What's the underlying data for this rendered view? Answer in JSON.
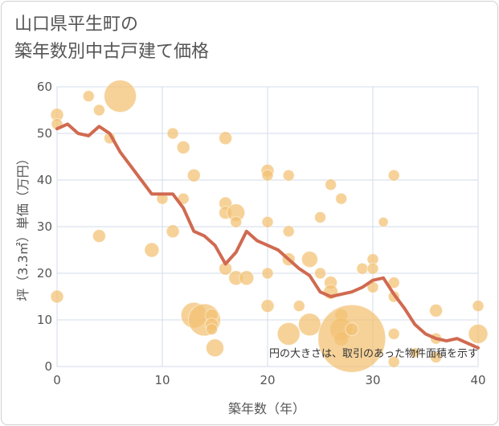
{
  "header": {
    "title_line1": "山口県平生町の",
    "title_line2": "築年数別中古戸建て価格"
  },
  "colors": {
    "bubble": "#f2c071",
    "line": "#d06a50",
    "grid": "#d3dbe8",
    "axis_text": "#555555"
  },
  "chart_data": {
    "type": "scatter",
    "xlabel": "築年数（年）",
    "ylabel": "坪（3.3㎡）単価（万円）",
    "xlim": [
      0,
      40
    ],
    "ylim": [
      0,
      60
    ],
    "x_ticks": [
      0,
      10,
      20,
      30,
      40
    ],
    "y_ticks": [
      0,
      10,
      20,
      30,
      40,
      50,
      60
    ],
    "note": "円の大きさは、取引のあった物件面積を示す",
    "bubbles": [
      {
        "x": 0,
        "y": 54,
        "s": 8
      },
      {
        "x": 0,
        "y": 52,
        "s": 7
      },
      {
        "x": 0,
        "y": 15,
        "s": 8
      },
      {
        "x": 3,
        "y": 58,
        "s": 7
      },
      {
        "x": 4,
        "y": 55,
        "s": 7
      },
      {
        "x": 4,
        "y": 28,
        "s": 8
      },
      {
        "x": 5,
        "y": 49,
        "s": 7
      },
      {
        "x": 6,
        "y": 58,
        "s": 20
      },
      {
        "x": 9,
        "y": 25,
        "s": 9
      },
      {
        "x": 10,
        "y": 36,
        "s": 7
      },
      {
        "x": 11,
        "y": 50,
        "s": 7
      },
      {
        "x": 11,
        "y": 29,
        "s": 8
      },
      {
        "x": 12,
        "y": 47,
        "s": 8
      },
      {
        "x": 12,
        "y": 36,
        "s": 7
      },
      {
        "x": 13,
        "y": 41,
        "s": 8
      },
      {
        "x": 13,
        "y": 11,
        "s": 16
      },
      {
        "x": 14,
        "y": 10,
        "s": 20
      },
      {
        "x": 14.7,
        "y": 11,
        "s": 8
      },
      {
        "x": 14.7,
        "y": 9,
        "s": 8
      },
      {
        "x": 14.7,
        "y": 8,
        "s": 7
      },
      {
        "x": 15,
        "y": 4,
        "s": 11
      },
      {
        "x": 16,
        "y": 49,
        "s": 8
      },
      {
        "x": 16,
        "y": 35,
        "s": 8
      },
      {
        "x": 16,
        "y": 33,
        "s": 8
      },
      {
        "x": 16,
        "y": 21,
        "s": 8
      },
      {
        "x": 17,
        "y": 33,
        "s": 11
      },
      {
        "x": 17,
        "y": 31,
        "s": 7
      },
      {
        "x": 17,
        "y": 19,
        "s": 9
      },
      {
        "x": 18,
        "y": 19,
        "s": 9
      },
      {
        "x": 20,
        "y": 42,
        "s": 8
      },
      {
        "x": 20,
        "y": 41,
        "s": 7
      },
      {
        "x": 20,
        "y": 31,
        "s": 7
      },
      {
        "x": 20,
        "y": 20,
        "s": 7
      },
      {
        "x": 20,
        "y": 13,
        "s": 8
      },
      {
        "x": 22,
        "y": 41,
        "s": 7
      },
      {
        "x": 22,
        "y": 29,
        "s": 7
      },
      {
        "x": 22,
        "y": 23,
        "s": 8
      },
      {
        "x": 22,
        "y": 7,
        "s": 14
      },
      {
        "x": 23,
        "y": 13,
        "s": 7
      },
      {
        "x": 24,
        "y": 23,
        "s": 10
      },
      {
        "x": 24,
        "y": 9,
        "s": 14
      },
      {
        "x": 25,
        "y": 32,
        "s": 7
      },
      {
        "x": 25,
        "y": 20,
        "s": 7
      },
      {
        "x": 26,
        "y": 39,
        "s": 7
      },
      {
        "x": 26,
        "y": 18,
        "s": 8
      },
      {
        "x": 26,
        "y": 16,
        "s": 9
      },
      {
        "x": 27,
        "y": 36,
        "s": 7
      },
      {
        "x": 27,
        "y": 11,
        "s": 8
      },
      {
        "x": 27,
        "y": 8,
        "s": 14
      },
      {
        "x": 27,
        "y": 6,
        "s": 9
      },
      {
        "x": 28,
        "y": 6,
        "s": 42
      },
      {
        "x": 28,
        "y": 8,
        "s": 8
      },
      {
        "x": 29,
        "y": 21,
        "s": 7
      },
      {
        "x": 30,
        "y": 23,
        "s": 7
      },
      {
        "x": 30,
        "y": 21,
        "s": 7
      },
      {
        "x": 30,
        "y": 17,
        "s": 7
      },
      {
        "x": 31,
        "y": 31,
        "s": 6
      },
      {
        "x": 32,
        "y": 41,
        "s": 7
      },
      {
        "x": 32,
        "y": 18,
        "s": 7
      },
      {
        "x": 32,
        "y": 15,
        "s": 7
      },
      {
        "x": 32,
        "y": 7,
        "s": 7
      },
      {
        "x": 32,
        "y": 1,
        "s": 7
      },
      {
        "x": 34,
        "y": 3,
        "s": 6
      },
      {
        "x": 36,
        "y": 12,
        "s": 8
      },
      {
        "x": 36,
        "y": 6,
        "s": 7
      },
      {
        "x": 36,
        "y": 2,
        "s": 7
      },
      {
        "x": 40,
        "y": 13,
        "s": 7
      },
      {
        "x": 40,
        "y": 7,
        "s": 12
      }
    ],
    "trend": {
      "x": [
        0,
        1,
        2,
        3,
        4,
        5,
        6,
        7,
        8,
        9,
        10,
        11,
        12,
        13,
        14,
        15,
        16,
        17,
        18,
        19,
        20,
        21,
        22,
        23,
        24,
        25,
        26,
        27,
        28,
        29,
        30,
        31,
        32,
        33,
        34,
        35,
        36,
        37,
        38,
        39,
        40
      ],
      "y": [
        51,
        52,
        50,
        49.5,
        51.5,
        50,
        46,
        43,
        40,
        37,
        37,
        37,
        34,
        29,
        28,
        26,
        22,
        24.5,
        29,
        27,
        26,
        25,
        23,
        21,
        19.5,
        16,
        15,
        15.5,
        16,
        17,
        18.5,
        19,
        15.5,
        12.5,
        9,
        7,
        6,
        5.5,
        6,
        5,
        4
      ]
    }
  }
}
